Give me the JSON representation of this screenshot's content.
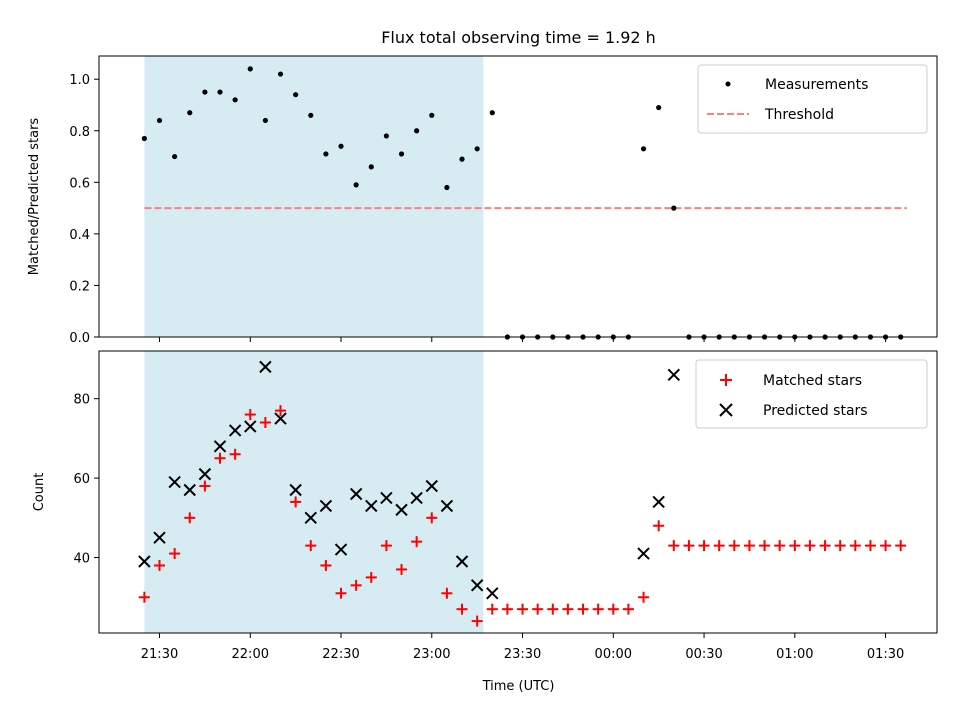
{
  "chart_data": [
    {
      "type": "scatter",
      "title": "Flux total observing time = 1.92 h",
      "xlabel": "",
      "ylabel": "Matched/Predicted stars",
      "ylim": [
        0,
        1.09
      ],
      "yticks": [
        0.0,
        0.2,
        0.4,
        0.6,
        0.8,
        1.0
      ],
      "ytick_labels": [
        "0.0",
        "0.2",
        "0.4",
        "0.6",
        "0.8",
        "1.0"
      ],
      "shaded_interval": [
        "21:25",
        "23:17"
      ],
      "shade_color": "#add8e6",
      "legend_position": "upper right",
      "legend": {
        "measurements": "Measurements",
        "threshold": "Threshold"
      },
      "threshold": {
        "value": 0.5,
        "x_start": "21:25",
        "x_end": "01:37",
        "color": "#ff7f7f",
        "style": "dashed"
      },
      "series": [
        {
          "name": "Measurements",
          "color": "#000000",
          "marker": "dot",
          "x": [
            "21:25",
            "21:30",
            "21:35",
            "21:40",
            "21:45",
            "21:50",
            "21:55",
            "22:00",
            "22:05",
            "22:10",
            "22:15",
            "22:20",
            "22:25",
            "22:30",
            "22:35",
            "22:40",
            "22:45",
            "22:50",
            "22:55",
            "23:00",
            "23:05",
            "23:10",
            "23:15",
            "23:20",
            "23:25",
            "23:30",
            "23:35",
            "23:40",
            "23:45",
            "23:50",
            "23:55",
            "00:00",
            "00:05",
            "00:10",
            "00:15",
            "00:20",
            "00:25",
            "00:30",
            "00:35",
            "00:40",
            "00:45",
            "00:50",
            "00:55",
            "01:00",
            "01:05",
            "01:10",
            "01:15",
            "01:20",
            "01:25",
            "01:30",
            "01:35"
          ],
          "y": [
            0.77,
            0.84,
            0.7,
            0.87,
            0.95,
            0.95,
            0.92,
            1.04,
            0.84,
            1.02,
            0.94,
            0.86,
            0.71,
            0.74,
            0.59,
            0.66,
            0.78,
            0.71,
            0.8,
            0.86,
            0.58,
            0.69,
            0.73,
            0.87,
            0,
            0,
            0,
            0,
            0,
            0,
            0,
            0,
            0,
            0.73,
            0.89,
            0.5,
            0,
            0,
            0,
            0,
            0,
            0,
            0,
            0,
            0,
            0,
            0,
            0,
            0,
            0,
            0
          ]
        }
      ]
    },
    {
      "type": "scatter",
      "title": "",
      "xlabel": "Time (UTC)",
      "ylabel": "Count",
      "ylim": [
        21,
        92
      ],
      "yticks": [
        40,
        60,
        80
      ],
      "ytick_labels": [
        "40",
        "60",
        "80"
      ],
      "xlim": [
        "21:10",
        "01:47"
      ],
      "xticks": [
        "21:30",
        "22:00",
        "22:30",
        "23:00",
        "23:30",
        "00:00",
        "00:30",
        "01:00",
        "01:30"
      ],
      "xtick_labels": [
        "21:30",
        "22:00",
        "22:30",
        "23:00",
        "23:30",
        "00:00",
        "00:30",
        "01:00",
        "01:30"
      ],
      "shaded_interval": [
        "21:25",
        "23:17"
      ],
      "shade_color": "#add8e6",
      "legend_position": "upper right",
      "series": [
        {
          "name": "Matched stars",
          "color": "#ff0000",
          "marker": "plus",
          "x": [
            "21:25",
            "21:30",
            "21:35",
            "21:40",
            "21:45",
            "21:50",
            "21:55",
            "22:00",
            "22:05",
            "22:10",
            "22:15",
            "22:20",
            "22:25",
            "22:30",
            "22:35",
            "22:40",
            "22:45",
            "22:50",
            "22:55",
            "23:00",
            "23:05",
            "23:10",
            "23:15",
            "23:20",
            "23:25",
            "23:30",
            "23:35",
            "23:40",
            "23:45",
            "23:50",
            "23:55",
            "00:00",
            "00:05",
            "00:10",
            "00:15",
            "00:20",
            "00:25",
            "00:30",
            "00:35",
            "00:40",
            "00:45",
            "00:50",
            "00:55",
            "01:00",
            "01:05",
            "01:10",
            "01:15",
            "01:20",
            "01:25",
            "01:30",
            "01:35"
          ],
          "y": [
            30,
            38,
            41,
            50,
            58,
            65,
            66,
            76,
            74,
            77,
            54,
            43,
            38,
            31,
            33,
            35,
            43,
            37,
            44,
            50,
            31,
            27,
            24,
            27,
            27,
            27,
            27,
            27,
            27,
            27,
            27,
            27,
            27,
            30,
            48,
            43,
            43,
            43,
            43,
            43,
            43,
            43,
            43,
            43,
            43,
            43,
            43,
            43,
            43,
            43,
            43
          ]
        },
        {
          "name": "Predicted stars",
          "color": "#000000",
          "marker": "x",
          "x": [
            "21:25",
            "21:30",
            "21:35",
            "21:40",
            "21:45",
            "21:50",
            "21:55",
            "22:00",
            "22:05",
            "22:10",
            "22:15",
            "22:20",
            "22:25",
            "22:30",
            "22:35",
            "22:40",
            "22:45",
            "22:50",
            "22:55",
            "23:00",
            "23:05",
            "23:10",
            "23:15",
            "23:20",
            "00:10",
            "00:15",
            "00:20"
          ],
          "y": [
            39,
            45,
            59,
            57,
            61,
            68,
            72,
            73,
            88,
            75,
            57,
            50,
            53,
            42,
            56,
            53,
            55,
            52,
            55,
            58,
            53,
            39,
            33,
            31,
            41,
            54,
            86
          ]
        }
      ]
    }
  ]
}
